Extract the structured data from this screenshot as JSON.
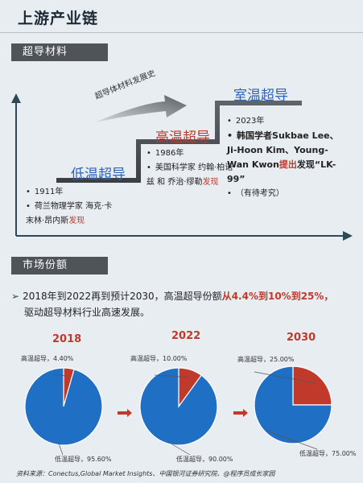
{
  "page_title": "上游产业链",
  "sections": {
    "materials": "超导材料",
    "market": "市场份额"
  },
  "timeline": {
    "history_label": "超导体材料发展史",
    "stages": [
      {
        "label": "低温超导",
        "year": "1911年",
        "text": "荷兰物理学家 海克·卡末林·昂内斯",
        "highlight": "发现"
      },
      {
        "label": "高温超导",
        "year": "1986年",
        "text": "美国科学家 约翰·柏诺兹 和 乔治·缪勒",
        "highlight": "发现"
      },
      {
        "label": "室温超导",
        "year": "2023年",
        "text_pre": "韩国学者Sukbae Lee、Ji-Hoon Kim、Young-Wan Kwon",
        "highlight": "提出",
        "text_post": "发现“LK-99”",
        "extra": "（有待考究）"
      }
    ]
  },
  "summary": {
    "pre": "2018年到2022再到预计2030，高温超导份额",
    "highlight": "从4.4%到10%到25%，",
    "post": "驱动超导材料行业高速发展。"
  },
  "chart_data": [
    {
      "type": "pie",
      "title": "2018",
      "labels": [
        "高温超导",
        "低温超导"
      ],
      "values": [
        4.4,
        95.6
      ],
      "display": [
        "高温超导，4.40%",
        "低温超导，95.60%"
      ],
      "colors": [
        "#c0392b",
        "#1f6fc5"
      ]
    },
    {
      "type": "pie",
      "title": "2022",
      "labels": [
        "高温超导",
        "低温超导"
      ],
      "values": [
        10.0,
        90.0
      ],
      "display": [
        "高温超导，10.00%",
        "低温超导，90.00%"
      ],
      "colors": [
        "#c0392b",
        "#1f6fc5"
      ]
    },
    {
      "type": "pie",
      "title": "2030",
      "labels": [
        "高温超导",
        "低温超导"
      ],
      "values": [
        25.0,
        75.0
      ],
      "display": [
        "高温超导，25.00%",
        "低温超导，75.00%"
      ],
      "colors": [
        "#c0392b",
        "#1f6fc5"
      ]
    }
  ],
  "source": "资料来源：Conectus,Global Market Insights、中国银河证券研究院、@程序员成长家园"
}
